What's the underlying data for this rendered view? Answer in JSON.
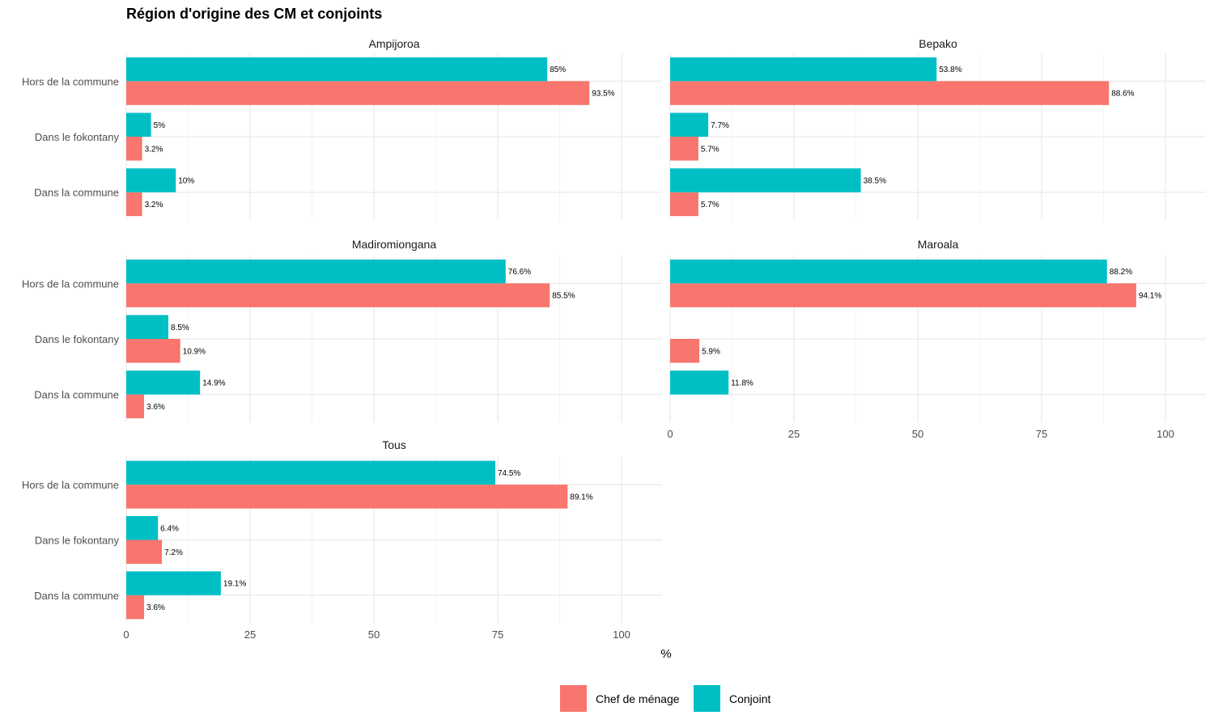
{
  "chart_data": {
    "type": "bar",
    "orientation": "horizontal",
    "title": "Région d'origine des CM et conjoints",
    "xlabel": "%",
    "ylabel": "",
    "xlim": [
      0,
      108
    ],
    "x_ticks": [
      0,
      25,
      50,
      75,
      100
    ],
    "x_tick_labels": [
      "0",
      "25",
      "50",
      "75",
      "100"
    ],
    "grid": true,
    "legend": {
      "placement": "bottom",
      "entries": [
        {
          "name": "Chef de ménage",
          "color": "#F8766D"
        },
        {
          "name": "Conjoint",
          "color": "#00BFC4"
        }
      ]
    },
    "categories": [
      "Dans la commune",
      "Dans le fokontany",
      "Hors de la commune"
    ],
    "panels": [
      {
        "name": "Ampijoroa",
        "series": [
          {
            "name": "Chef de ménage",
            "values": [
              3.2,
              3.2,
              93.5
            ],
            "labels": [
              "3.2%",
              "3.2%",
              "93.5%"
            ]
          },
          {
            "name": "Conjoint",
            "values": [
              10,
              5,
              85
            ],
            "labels": [
              "10%",
              "5%",
              "85%"
            ]
          }
        ]
      },
      {
        "name": "Bepako",
        "series": [
          {
            "name": "Chef de ménage",
            "values": [
              5.7,
              5.7,
              88.6
            ],
            "labels": [
              "5.7%",
              "5.7%",
              "88.6%"
            ]
          },
          {
            "name": "Conjoint",
            "values": [
              38.5,
              7.7,
              53.8
            ],
            "labels": [
              "38.5%",
              "7.7%",
              "53.8%"
            ]
          }
        ]
      },
      {
        "name": "Madiromiongana",
        "series": [
          {
            "name": "Chef de ménage",
            "values": [
              3.6,
              10.9,
              85.5
            ],
            "labels": [
              "3.6%",
              "10.9%",
              "85.5%"
            ]
          },
          {
            "name": "Conjoint",
            "values": [
              14.9,
              8.5,
              76.6
            ],
            "labels": [
              "14.9%",
              "8.5%",
              "76.6%"
            ]
          }
        ]
      },
      {
        "name": "Maroala",
        "series": [
          {
            "name": "Chef de ménage",
            "values": [
              null,
              5.9,
              94.1
            ],
            "labels": [
              null,
              "5.9%",
              "94.1%"
            ]
          },
          {
            "name": "Conjoint",
            "values": [
              11.8,
              null,
              88.2
            ],
            "labels": [
              "11.8%",
              null,
              "88.2%"
            ]
          }
        ]
      },
      {
        "name": "Tous",
        "series": [
          {
            "name": "Chef de ménage",
            "values": [
              3.6,
              7.2,
              89.1
            ],
            "labels": [
              "3.6%",
              "7.2%",
              "89.1%"
            ]
          },
          {
            "name": "Conjoint",
            "values": [
              19.1,
              6.4,
              74.5
            ],
            "labels": [
              "19.1%",
              "6.4%",
              "74.5%"
            ]
          }
        ]
      }
    ]
  }
}
